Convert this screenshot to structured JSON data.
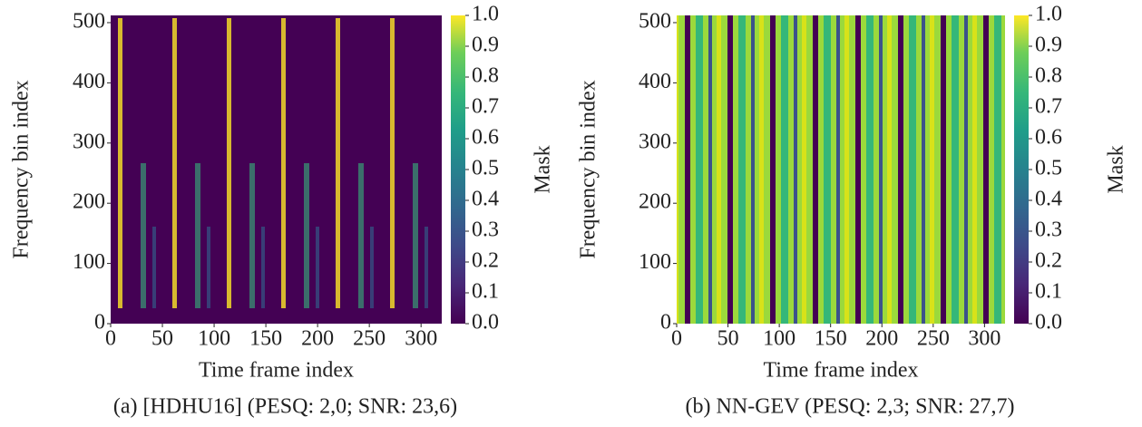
{
  "chart_data": [
    {
      "type": "heatmap",
      "xlabel": "Time frame index",
      "ylabel": "Frequency bin index",
      "xlim": [
        0,
        320
      ],
      "ylim": [
        0,
        512
      ],
      "xticks": [
        0,
        50,
        100,
        150,
        200,
        250,
        300
      ],
      "yticks": [
        0,
        100,
        200,
        300,
        400,
        500
      ],
      "colorbar_label": "Mask",
      "clim": [
        0,
        1
      ],
      "cticks": [
        {
          "value": 0,
          "label": "0.0"
        },
        {
          "value": 0.1,
          "label": "0.1"
        },
        {
          "value": 0.2,
          "label": "0.2"
        },
        {
          "value": 0.3,
          "label": "0.3"
        },
        {
          "value": 0.4,
          "label": "0.4"
        },
        {
          "value": 0.5,
          "label": "0.5"
        },
        {
          "value": 0.6,
          "label": "0.6"
        },
        {
          "value": 0.7,
          "label": "0.7"
        },
        {
          "value": 0.8,
          "label": "0.8"
        },
        {
          "value": 0.9,
          "label": "0.9"
        },
        {
          "value": 1,
          "label": "1.0"
        }
      ],
      "caption": "(a) [HDHU16] (PESQ: 2,0; SNR: 23,6)"
    },
    {
      "type": "heatmap",
      "xlabel": "Time frame index",
      "ylabel": "Frequency bin index",
      "xlim": [
        0,
        320
      ],
      "ylim": [
        0,
        512
      ],
      "xticks": [
        0,
        50,
        100,
        150,
        200,
        250,
        300
      ],
      "yticks": [
        0,
        100,
        200,
        300,
        400,
        500
      ],
      "colorbar_label": "Mask",
      "clim": [
        0,
        1
      ],
      "cticks": [
        {
          "value": 0,
          "label": "0.0"
        },
        {
          "value": 0.1,
          "label": "0.1"
        },
        {
          "value": 0.2,
          "label": "0.2"
        },
        {
          "value": 0.3,
          "label": "0.3"
        },
        {
          "value": 0.4,
          "label": "0.4"
        },
        {
          "value": 0.5,
          "label": "0.5"
        },
        {
          "value": 0.6,
          "label": "0.6"
        },
        {
          "value": 0.7,
          "label": "0.7"
        },
        {
          "value": 0.8,
          "label": "0.8"
        },
        {
          "value": 0.9,
          "label": "0.9"
        },
        {
          "value": 1,
          "label": "1.0"
        }
      ],
      "caption": "(b) NN-GEV (PESQ: 2,3; SNR: 27,7)"
    }
  ]
}
